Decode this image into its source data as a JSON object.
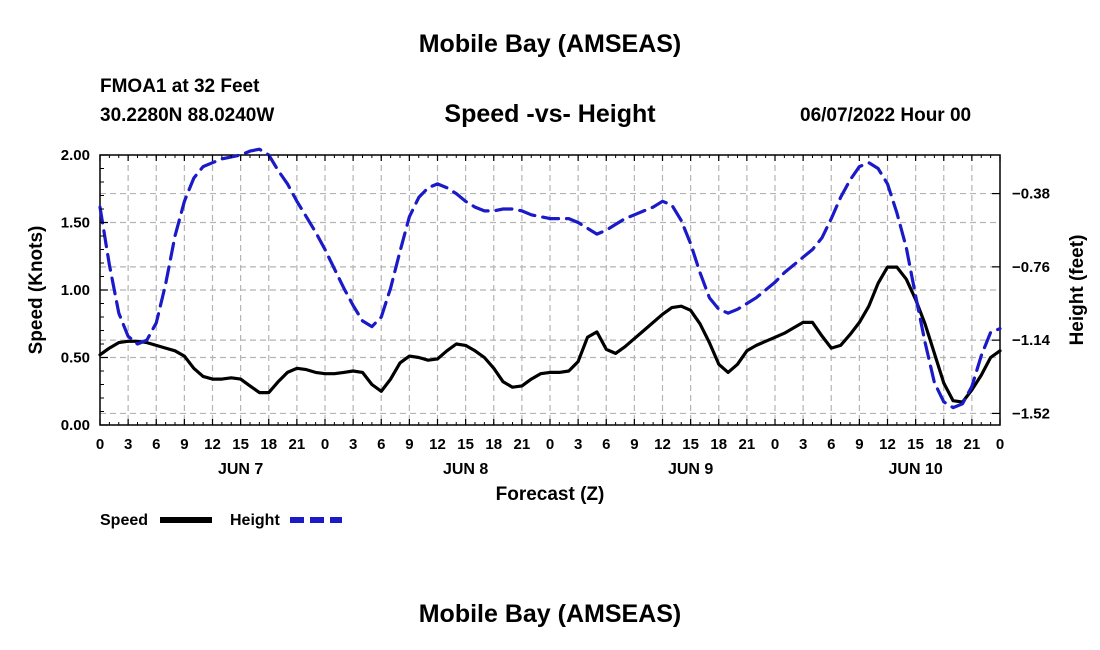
{
  "header": {
    "title": "Mobile Bay (AMSEAS)",
    "station": "FMOA1 at 32 Feet",
    "coords": "30.2280N  88.0240W",
    "plot_title": "Speed -vs- Height",
    "run_time": "06/07/2022 Hour 00"
  },
  "footer": {
    "title": "Mobile Bay (AMSEAS)"
  },
  "chart_data": {
    "type": "line",
    "xlabel": "Forecast (Z)",
    "ylabel_left": "Speed (Knots)",
    "ylabel_right": "Height (feet)",
    "x_ticks": [
      "0",
      "3",
      "6",
      "9",
      "12",
      "15",
      "18",
      "21",
      "0",
      "3",
      "6",
      "9",
      "12",
      "15",
      "18",
      "21",
      "0",
      "3",
      "6",
      "9",
      "12",
      "15",
      "18",
      "21",
      "0",
      "3",
      "6",
      "9",
      "12",
      "15",
      "18",
      "21",
      "0"
    ],
    "day_labels": [
      {
        "label": "JUN 7",
        "hour": 15
      },
      {
        "label": "JUN 8",
        "hour": 39
      },
      {
        "label": "JUN 9",
        "hour": 63
      },
      {
        "label": "JUN 10",
        "hour": 87
      }
    ],
    "xlim": [
      0,
      96
    ],
    "ylim_left": [
      0,
      2.0
    ],
    "yticks_left": [
      "0.00",
      "0.50",
      "1.00",
      "1.50",
      "2.00"
    ],
    "ylim_right": [
      -1.58,
      -0.18
    ],
    "yticks_right": [
      "-0.38",
      "-0.76",
      "-1.14",
      "-1.52"
    ],
    "grid": true,
    "series": [
      {
        "name": "Speed",
        "axis": "left",
        "color": "#000000",
        "style": "solid",
        "points": [
          [
            0,
            0.52
          ],
          [
            1,
            0.57
          ],
          [
            2,
            0.61
          ],
          [
            3,
            0.62
          ],
          [
            4,
            0.62
          ],
          [
            5,
            0.61
          ],
          [
            6,
            0.59
          ],
          [
            7,
            0.57
          ],
          [
            8,
            0.55
          ],
          [
            9,
            0.51
          ],
          [
            10,
            0.42
          ],
          [
            11,
            0.36
          ],
          [
            12,
            0.34
          ],
          [
            13,
            0.34
          ],
          [
            14,
            0.35
          ],
          [
            15,
            0.34
          ],
          [
            16,
            0.29
          ],
          [
            17,
            0.24
          ],
          [
            18,
            0.24
          ],
          [
            19,
            0.32
          ],
          [
            20,
            0.39
          ],
          [
            21,
            0.42
          ],
          [
            22,
            0.41
          ],
          [
            23,
            0.39
          ],
          [
            24,
            0.38
          ],
          [
            25,
            0.38
          ],
          [
            26,
            0.39
          ],
          [
            27,
            0.4
          ],
          [
            28,
            0.39
          ],
          [
            29,
            0.3
          ],
          [
            30,
            0.25
          ],
          [
            31,
            0.34
          ],
          [
            32,
            0.46
          ],
          [
            33,
            0.51
          ],
          [
            34,
            0.5
          ],
          [
            35,
            0.48
          ],
          [
            36,
            0.49
          ],
          [
            37,
            0.55
          ],
          [
            38,
            0.6
          ],
          [
            39,
            0.59
          ],
          [
            40,
            0.55
          ],
          [
            41,
            0.5
          ],
          [
            42,
            0.42
          ],
          [
            43,
            0.32
          ],
          [
            44,
            0.28
          ],
          [
            45,
            0.29
          ],
          [
            46,
            0.34
          ],
          [
            47,
            0.38
          ],
          [
            48,
            0.39
          ],
          [
            49,
            0.39
          ],
          [
            50,
            0.4
          ],
          [
            51,
            0.47
          ],
          [
            52,
            0.65
          ],
          [
            53,
            0.69
          ],
          [
            54,
            0.56
          ],
          [
            55,
            0.53
          ],
          [
            56,
            0.58
          ],
          [
            57,
            0.64
          ],
          [
            58,
            0.7
          ],
          [
            59,
            0.76
          ],
          [
            60,
            0.82
          ],
          [
            61,
            0.87
          ],
          [
            62,
            0.88
          ],
          [
            63,
            0.85
          ],
          [
            64,
            0.75
          ],
          [
            65,
            0.61
          ],
          [
            66,
            0.45
          ],
          [
            67,
            0.39
          ],
          [
            68,
            0.45
          ],
          [
            69,
            0.55
          ],
          [
            70,
            0.59
          ],
          [
            71,
            0.62
          ],
          [
            72,
            0.65
          ],
          [
            73,
            0.68
          ],
          [
            74,
            0.72
          ],
          [
            75,
            0.76
          ],
          [
            76,
            0.76
          ],
          [
            77,
            0.66
          ],
          [
            78,
            0.57
          ],
          [
            79,
            0.59
          ],
          [
            80,
            0.67
          ],
          [
            81,
            0.76
          ],
          [
            82,
            0.88
          ],
          [
            83,
            1.05
          ],
          [
            84,
            1.17
          ],
          [
            85,
            1.17
          ],
          [
            86,
            1.08
          ],
          [
            87,
            0.93
          ],
          [
            88,
            0.75
          ],
          [
            89,
            0.53
          ],
          [
            90,
            0.31
          ],
          [
            91,
            0.18
          ],
          [
            92,
            0.17
          ],
          [
            93,
            0.26
          ],
          [
            94,
            0.37
          ],
          [
            95,
            0.5
          ],
          [
            96,
            0.55
          ]
        ]
      },
      {
        "name": "Height",
        "axis": "right",
        "color": "#1a1ac8",
        "style": "dashed",
        "points": [
          [
            0,
            -0.45
          ],
          [
            1,
            -0.75
          ],
          [
            2,
            -1.0
          ],
          [
            3,
            -1.12
          ],
          [
            4,
            -1.16
          ],
          [
            5,
            -1.14
          ],
          [
            6,
            -1.05
          ],
          [
            7,
            -0.85
          ],
          [
            8,
            -0.6
          ],
          [
            9,
            -0.42
          ],
          [
            10,
            -0.3
          ],
          [
            11,
            -0.24
          ],
          [
            12,
            -0.22
          ],
          [
            13,
            -0.2
          ],
          [
            14,
            -0.19
          ],
          [
            15,
            -0.18
          ],
          [
            16,
            -0.16
          ],
          [
            17,
            -0.15
          ],
          [
            18,
            -0.18
          ],
          [
            19,
            -0.26
          ],
          [
            20,
            -0.33
          ],
          [
            21,
            -0.42
          ],
          [
            22,
            -0.5
          ],
          [
            23,
            -0.58
          ],
          [
            24,
            -0.67
          ],
          [
            25,
            -0.77
          ],
          [
            26,
            -0.87
          ],
          [
            27,
            -0.96
          ],
          [
            28,
            -1.04
          ],
          [
            29,
            -1.07
          ],
          [
            30,
            -1.02
          ],
          [
            31,
            -0.87
          ],
          [
            32,
            -0.68
          ],
          [
            33,
            -0.5
          ],
          [
            34,
            -0.4
          ],
          [
            35,
            -0.35
          ],
          [
            36,
            -0.33
          ],
          [
            37,
            -0.35
          ],
          [
            38,
            -0.38
          ],
          [
            39,
            -0.42
          ],
          [
            40,
            -0.45
          ],
          [
            41,
            -0.47
          ],
          [
            42,
            -0.47
          ],
          [
            43,
            -0.46
          ],
          [
            44,
            -0.46
          ],
          [
            45,
            -0.47
          ],
          [
            46,
            -0.49
          ],
          [
            47,
            -0.5
          ],
          [
            48,
            -0.51
          ],
          [
            49,
            -0.51
          ],
          [
            50,
            -0.51
          ],
          [
            51,
            -0.53
          ],
          [
            52,
            -0.56
          ],
          [
            53,
            -0.59
          ],
          [
            54,
            -0.57
          ],
          [
            55,
            -0.54
          ],
          [
            56,
            -0.51
          ],
          [
            57,
            -0.49
          ],
          [
            58,
            -0.47
          ],
          [
            59,
            -0.45
          ],
          [
            60,
            -0.42
          ],
          [
            61,
            -0.44
          ],
          [
            62,
            -0.52
          ],
          [
            63,
            -0.64
          ],
          [
            64,
            -0.79
          ],
          [
            65,
            -0.92
          ],
          [
            66,
            -0.98
          ],
          [
            67,
            -1.0
          ],
          [
            68,
            -0.98
          ],
          [
            69,
            -0.95
          ],
          [
            70,
            -0.92
          ],
          [
            71,
            -0.88
          ],
          [
            72,
            -0.84
          ],
          [
            73,
            -0.79
          ],
          [
            74,
            -0.75
          ],
          [
            75,
            -0.71
          ],
          [
            76,
            -0.67
          ],
          [
            77,
            -0.61
          ],
          [
            78,
            -0.51
          ],
          [
            79,
            -0.4
          ],
          [
            80,
            -0.31
          ],
          [
            81,
            -0.24
          ],
          [
            82,
            -0.22
          ],
          [
            83,
            -0.25
          ],
          [
            84,
            -0.33
          ],
          [
            85,
            -0.48
          ],
          [
            86,
            -0.66
          ],
          [
            87,
            -0.91
          ],
          [
            88,
            -1.15
          ],
          [
            89,
            -1.36
          ],
          [
            90,
            -1.46
          ],
          [
            91,
            -1.49
          ],
          [
            92,
            -1.47
          ],
          [
            93,
            -1.38
          ],
          [
            94,
            -1.22
          ],
          [
            95,
            -1.1
          ],
          [
            96,
            -1.08
          ]
        ]
      }
    ],
    "legend": {
      "position": "bottom-left",
      "entries": [
        {
          "label": "Speed",
          "color": "#000000",
          "style": "solid"
        },
        {
          "label": "Height",
          "color": "#1a1ac8",
          "style": "dashed"
        }
      ]
    }
  }
}
